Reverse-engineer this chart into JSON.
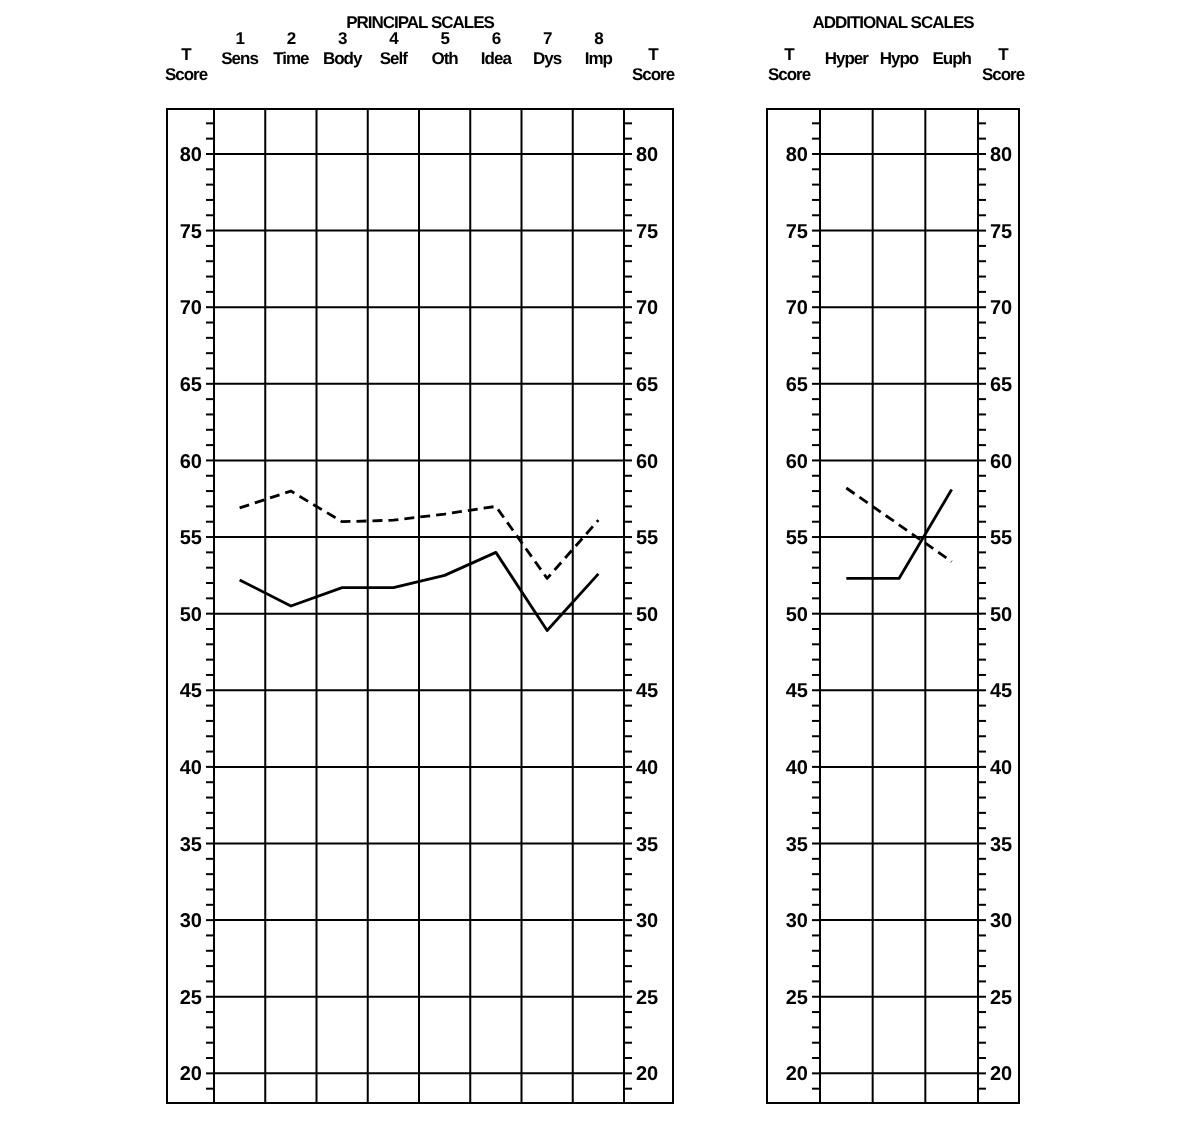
{
  "chart_data": [
    {
      "type": "line",
      "title": "PRINCIPAL SCALES",
      "ylabel": "T\nScore",
      "y2label": "T\nScore",
      "categories": [
        "1\nSens",
        "2\nTime",
        "3\nBody",
        "4\nSelf",
        "5\nOth",
        "6\nIdea",
        "7\nDys",
        "8\nImp"
      ],
      "series": [
        {
          "color": "#000000",
          "line_style": "solid",
          "values": [
            52.2,
            50.5,
            51.7,
            51.7,
            52.5,
            54.0,
            48.9,
            52.6
          ]
        },
        {
          "color": "#000000",
          "line_style": "dashed",
          "values": [
            56.9,
            58.0,
            56.0,
            56.1,
            56.5,
            57.0,
            52.3,
            56.1
          ]
        }
      ],
      "ylim": [
        18,
        83
      ],
      "yticks": [
        {
          "value": 19,
          "label": null
        },
        20,
        {
          "value": 21,
          "label": null
        },
        {
          "value": 22,
          "label": null
        },
        {
          "value": 23,
          "label": null
        },
        {
          "value": 24,
          "label": null
        },
        25,
        {
          "value": 26,
          "label": null
        },
        {
          "value": 27,
          "label": null
        },
        {
          "value": 28,
          "label": null
        },
        {
          "value": 29,
          "label": null
        },
        30,
        {
          "value": 31,
          "label": null
        },
        {
          "value": 32,
          "label": null
        },
        {
          "value": 33,
          "label": null
        },
        {
          "value": 34,
          "label": null
        },
        35,
        {
          "value": 36,
          "label": null
        },
        {
          "value": 37,
          "label": null
        },
        {
          "value": 38,
          "label": null
        },
        {
          "value": 39,
          "label": null
        },
        40,
        {
          "value": 41,
          "label": null
        },
        {
          "value": 42,
          "label": null
        },
        {
          "value": 43,
          "label": null
        },
        {
          "value": 44,
          "label": null
        },
        45,
        {
          "value": 46,
          "label": null
        },
        {
          "value": 47,
          "label": null
        },
        {
          "value": 48,
          "label": null
        },
        {
          "value": 49,
          "label": null
        },
        50,
        {
          "value": 51,
          "label": null
        },
        {
          "value": 52,
          "label": null
        },
        {
          "value": 53,
          "label": null
        },
        {
          "value": 54,
          "label": null
        },
        55,
        {
          "value": 56,
          "label": null
        },
        {
          "value": 57,
          "label": null
        },
        {
          "value": 58,
          "label": null
        },
        {
          "value": 59,
          "label": null
        },
        60,
        {
          "value": 61,
          "label": null
        },
        {
          "value": 62,
          "label": null
        },
        {
          "value": 63,
          "label": null
        },
        {
          "value": 64,
          "label": null
        },
        65,
        {
          "value": 66,
          "label": null
        },
        {
          "value": 67,
          "label": null
        },
        {
          "value": 68,
          "label": null
        },
        {
          "value": 69,
          "label": null
        },
        70,
        {
          "value": 71,
          "label": null
        },
        {
          "value": 72,
          "label": null
        },
        {
          "value": 73,
          "label": null
        },
        {
          "value": 74,
          "label": null
        },
        75,
        {
          "value": 76,
          "label": null
        },
        {
          "value": 77,
          "label": null
        },
        {
          "value": 78,
          "label": null
        },
        {
          "value": 79,
          "label": null
        },
        80,
        {
          "value": 81,
          "label": null
        },
        {
          "value": 82,
          "label": null
        }
      ],
      "y2lim": [
        18,
        83
      ],
      "y2ticks": [
        {
          "value": 19,
          "label": null
        },
        20,
        {
          "value": 21,
          "label": null
        },
        {
          "value": 22,
          "label": null
        },
        {
          "value": 23,
          "label": null
        },
        {
          "value": 24,
          "label": null
        },
        25,
        {
          "value": 26,
          "label": null
        },
        {
          "value": 27,
          "label": null
        },
        {
          "value": 28,
          "label": null
        },
        {
          "value": 29,
          "label": null
        },
        30,
        {
          "value": 31,
          "label": null
        },
        {
          "value": 32,
          "label": null
        },
        {
          "value": 33,
          "label": null
        },
        {
          "value": 34,
          "label": null
        },
        35,
        {
          "value": 36,
          "label": null
        },
        {
          "value": 37,
          "label": null
        },
        {
          "value": 38,
          "label": null
        },
        {
          "value": 39,
          "label": null
        },
        40,
        {
          "value": 41,
          "label": null
        },
        {
          "value": 42,
          "label": null
        },
        {
          "value": 43,
          "label": null
        },
        {
          "value": 44,
          "label": null
        },
        45,
        {
          "value": 46,
          "label": null
        },
        {
          "value": 47,
          "label": null
        },
        {
          "value": 48,
          "label": null
        },
        {
          "value": 49,
          "label": null
        },
        50,
        {
          "value": 51,
          "label": null
        },
        {
          "value": 52,
          "label": null
        },
        {
          "value": 53,
          "label": null
        },
        {
          "value": 54,
          "label": null
        },
        55,
        {
          "value": 56,
          "label": null
        },
        {
          "value": 57,
          "label": null
        },
        {
          "value": 58,
          "label": null
        },
        {
          "value": 59,
          "label": null
        },
        60,
        {
          "value": 61,
          "label": null
        },
        {
          "value": 62,
          "label": null
        },
        {
          "value": 63,
          "label": null
        },
        {
          "value": 64,
          "label": null
        },
        65,
        {
          "value": 66,
          "label": null
        },
        {
          "value": 67,
          "label": null
        },
        {
          "value": 68,
          "label": null
        },
        {
          "value": 69,
          "label": null
        },
        70,
        {
          "value": 71,
          "label": null
        },
        {
          "value": 72,
          "label": null
        },
        {
          "value": 73,
          "label": null
        },
        {
          "value": 74,
          "label": null
        },
        75,
        {
          "value": 76,
          "label": null
        },
        {
          "value": 77,
          "label": null
        },
        {
          "value": 78,
          "label": null
        },
        {
          "value": 79,
          "label": null
        },
        80,
        {
          "value": 81,
          "label": null
        },
        {
          "value": 82,
          "label": null
        }
      ],
      "grid": true,
      "legend": false
    },
    {
      "type": "line",
      "title": "ADDITIONAL SCALES",
      "ylabel": "T\nScore",
      "y2label": "T\nScore",
      "categories": [
        "Hyper",
        "Hypo",
        "Euph"
      ],
      "series": [
        {
          "color": "#000000",
          "line_style": "solid",
          "values": [
            52.3,
            52.3,
            58.1
          ]
        },
        {
          "color": "#000000",
          "line_style": "dashed",
          "values": [
            58.2,
            55.8,
            53.4
          ]
        }
      ],
      "ylim": [
        18,
        83
      ],
      "yticks": [
        {
          "value": 19,
          "label": null
        },
        20,
        {
          "value": 21,
          "label": null
        },
        {
          "value": 22,
          "label": null
        },
        {
          "value": 23,
          "label": null
        },
        {
          "value": 24,
          "label": null
        },
        25,
        {
          "value": 26,
          "label": null
        },
        {
          "value": 27,
          "label": null
        },
        {
          "value": 28,
          "label": null
        },
        {
          "value": 29,
          "label": null
        },
        30,
        {
          "value": 31,
          "label": null
        },
        {
          "value": 32,
          "label": null
        },
        {
          "value": 33,
          "label": null
        },
        {
          "value": 34,
          "label": null
        },
        35,
        {
          "value": 36,
          "label": null
        },
        {
          "value": 37,
          "label": null
        },
        {
          "value": 38,
          "label": null
        },
        {
          "value": 39,
          "label": null
        },
        40,
        {
          "value": 41,
          "label": null
        },
        {
          "value": 42,
          "label": null
        },
        {
          "value": 43,
          "label": null
        },
        {
          "value": 44,
          "label": null
        },
        45,
        {
          "value": 46,
          "label": null
        },
        {
          "value": 47,
          "label": null
        },
        {
          "value": 48,
          "label": null
        },
        {
          "value": 49,
          "label": null
        },
        50,
        {
          "value": 51,
          "label": null
        },
        {
          "value": 52,
          "label": null
        },
        {
          "value": 53,
          "label": null
        },
        {
          "value": 54,
          "label": null
        },
        55,
        {
          "value": 56,
          "label": null
        },
        {
          "value": 57,
          "label": null
        },
        {
          "value": 58,
          "label": null
        },
        {
          "value": 59,
          "label": null
        },
        60,
        {
          "value": 61,
          "label": null
        },
        {
          "value": 62,
          "label": null
        },
        {
          "value": 63,
          "label": null
        },
        {
          "value": 64,
          "label": null
        },
        65,
        {
          "value": 66,
          "label": null
        },
        {
          "value": 67,
          "label": null
        },
        {
          "value": 68,
          "label": null
        },
        {
          "value": 69,
          "label": null
        },
        70,
        {
          "value": 71,
          "label": null
        },
        {
          "value": 72,
          "label": null
        },
        {
          "value": 73,
          "label": null
        },
        {
          "value": 74,
          "label": null
        },
        75,
        {
          "value": 76,
          "label": null
        },
        {
          "value": 77,
          "label": null
        },
        {
          "value": 78,
          "label": null
        },
        {
          "value": 79,
          "label": null
        },
        80,
        {
          "value": 81,
          "label": null
        },
        {
          "value": 82,
          "label": null
        }
      ],
      "y2lim": [
        18,
        83
      ],
      "y2ticks": [
        {
          "value": 19,
          "label": null
        },
        20,
        {
          "value": 21,
          "label": null
        },
        {
          "value": 22,
          "label": null
        },
        {
          "value": 23,
          "label": null
        },
        {
          "value": 24,
          "label": null
        },
        25,
        {
          "value": 26,
          "label": null
        },
        {
          "value": 27,
          "label": null
        },
        {
          "value": 28,
          "label": null
        },
        {
          "value": 29,
          "label": null
        },
        30,
        {
          "value": 31,
          "label": null
        },
        {
          "value": 32,
          "label": null
        },
        {
          "value": 33,
          "label": null
        },
        {
          "value": 34,
          "label": null
        },
        35,
        {
          "value": 36,
          "label": null
        },
        {
          "value": 37,
          "label": null
        },
        {
          "value": 38,
          "label": null
        },
        {
          "value": 39,
          "label": null
        },
        40,
        {
          "value": 41,
          "label": null
        },
        {
          "value": 42,
          "label": null
        },
        {
          "value": 43,
          "label": null
        },
        {
          "value": 44,
          "label": null
        },
        45,
        {
          "value": 46,
          "label": null
        },
        {
          "value": 47,
          "label": null
        },
        {
          "value": 48,
          "label": null
        },
        {
          "value": 49,
          "label": null
        },
        50,
        {
          "value": 51,
          "label": null
        },
        {
          "value": 52,
          "label": null
        },
        {
          "value": 53,
          "label": null
        },
        {
          "value": 54,
          "label": null
        },
        55,
        {
          "value": 56,
          "label": null
        },
        {
          "value": 57,
          "label": null
        },
        {
          "value": 58,
          "label": null
        },
        {
          "value": 59,
          "label": null
        },
        60,
        {
          "value": 61,
          "label": null
        },
        {
          "value": 62,
          "label": null
        },
        {
          "value": 63,
          "label": null
        },
        {
          "value": 64,
          "label": null
        },
        65,
        {
          "value": 66,
          "label": null
        },
        {
          "value": 67,
          "label": null
        },
        {
          "value": 68,
          "label": null
        },
        {
          "value": 69,
          "label": null
        },
        70,
        {
          "value": 71,
          "label": null
        },
        {
          "value": 72,
          "label": null
        },
        {
          "value": 73,
          "label": null
        },
        {
          "value": 74,
          "label": null
        },
        75,
        {
          "value": 76,
          "label": null
        },
        {
          "value": 77,
          "label": null
        },
        {
          "value": 78,
          "label": null
        },
        {
          "value": 79,
          "label": null
        },
        80,
        {
          "value": 81,
          "label": null
        },
        {
          "value": 82,
          "label": null
        }
      ],
      "grid": true,
      "legend": false
    }
  ]
}
